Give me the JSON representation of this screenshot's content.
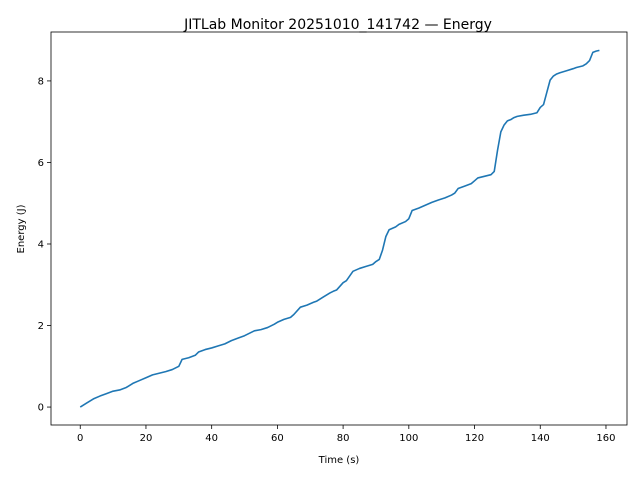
{
  "chart_data": {
    "type": "line",
    "title": "JITLab Monitor 20251010_141742 — Energy",
    "xlabel": "Time (s)",
    "ylabel": "Energy (J)",
    "xlim": [
      -8.9,
      166.4
    ],
    "ylim": [
      -0.44,
      9.2
    ],
    "xticks": [
      0,
      20,
      40,
      60,
      80,
      100,
      120,
      140,
      160
    ],
    "yticks": [
      0,
      2,
      4,
      6,
      8
    ],
    "grid": false,
    "legend": "none",
    "line_color": "#1f77b4",
    "series": [
      {
        "x": [
          0,
          2,
          4,
          6,
          8,
          10,
          12,
          14,
          16,
          18,
          20,
          22,
          24,
          26,
          28,
          30,
          31,
          33,
          35,
          36,
          38,
          40,
          42,
          44,
          46,
          48,
          50,
          51,
          53,
          55,
          57,
          59,
          60,
          62,
          64,
          65,
          67,
          69,
          71,
          72,
          74,
          76,
          77,
          78,
          80,
          81,
          83,
          85,
          87,
          89,
          90,
          91,
          92,
          93,
          94,
          96,
          97,
          99,
          100,
          101,
          103,
          105,
          107,
          109,
          111,
          113,
          114,
          115,
          117,
          119,
          120,
          121,
          123,
          125,
          126,
          127,
          128,
          129,
          130,
          131,
          132,
          133,
          135,
          137,
          139,
          140,
          141,
          142,
          143,
          144,
          145,
          146,
          148,
          150,
          151,
          153,
          154,
          155,
          156,
          157,
          158
        ],
        "values": [
          0,
          0.1,
          0.2,
          0.27,
          0.33,
          0.39,
          0.42,
          0.48,
          0.58,
          0.65,
          0.72,
          0.79,
          0.83,
          0.87,
          0.92,
          1.0,
          1.17,
          1.21,
          1.27,
          1.35,
          1.41,
          1.45,
          1.5,
          1.55,
          1.63,
          1.69,
          1.75,
          1.79,
          1.87,
          1.9,
          1.95,
          2.03,
          2.08,
          2.15,
          2.2,
          2.27,
          2.45,
          2.5,
          2.57,
          2.6,
          2.7,
          2.8,
          2.84,
          2.87,
          3.05,
          3.1,
          3.33,
          3.4,
          3.45,
          3.5,
          3.57,
          3.62,
          3.85,
          4.18,
          4.35,
          4.42,
          4.48,
          4.55,
          4.62,
          4.82,
          4.88,
          4.95,
          5.02,
          5.08,
          5.13,
          5.2,
          5.25,
          5.36,
          5.42,
          5.48,
          5.55,
          5.62,
          5.66,
          5.7,
          5.78,
          6.3,
          6.75,
          6.92,
          7.02,
          7.05,
          7.1,
          7.13,
          7.16,
          7.18,
          7.22,
          7.35,
          7.42,
          7.72,
          8.02,
          8.12,
          8.17,
          8.2,
          8.25,
          8.3,
          8.33,
          8.37,
          8.42,
          8.5,
          8.7,
          8.73,
          8.75
        ]
      }
    ]
  }
}
